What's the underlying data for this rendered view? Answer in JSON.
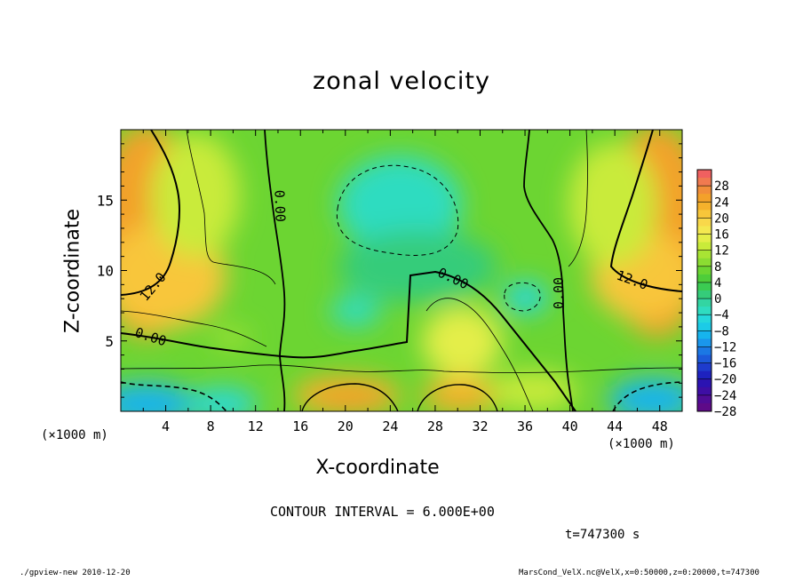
{
  "chart_data": {
    "type": "heatmap",
    "title": "zonal velocity",
    "xlabel": "X-coordinate",
    "ylabel": "Z-coordinate",
    "x_unit_left": "(×1000 m)",
    "x_unit_right": "(×1000 m)",
    "xlim": [
      0,
      50
    ],
    "ylim": [
      0,
      20
    ],
    "x_ticks": [
      4,
      8,
      12,
      16,
      20,
      24,
      28,
      32,
      36,
      40,
      44,
      48
    ],
    "y_ticks": [
      5,
      10,
      15
    ],
    "colorbar": {
      "labels": [
        "28",
        "24",
        "20",
        "16",
        "12",
        "8",
        "4",
        "0",
        "−4",
        "−8",
        "−12",
        "−16",
        "−20",
        "−24",
        "−28"
      ],
      "levels": [
        30,
        28,
        26,
        24,
        22,
        20,
        18,
        16,
        14,
        12,
        10,
        8,
        6,
        4,
        2,
        0,
        -2,
        -4,
        -6,
        -8,
        -10,
        -12,
        -14,
        -16,
        -18,
        -20,
        -22,
        -24,
        -26,
        -28,
        -30
      ],
      "colors": [
        "#f06060",
        "#f07a50",
        "#f18e3a",
        "#f3a12a",
        "#f5b12c",
        "#f8c63a",
        "#f9d84a",
        "#f4e850",
        "#e4ee48",
        "#c9eb3a",
        "#a8e434",
        "#8bdc32",
        "#6cd532",
        "#4ecd3a",
        "#3bcb52",
        "#35cc7a",
        "#33d5a2",
        "#2fdcc0",
        "#25d8dc",
        "#1ccbe7",
        "#16b4ee",
        "#1a96ec",
        "#1b78e4",
        "#1c5ada",
        "#1e3ccd",
        "#1e22bf",
        "#2b13b2",
        "#3e0ea4",
        "#500c96",
        "#5e0a88"
      ]
    },
    "contour_labels": [
      "12.0",
      "0.00",
      "0.00",
      "0.00",
      "0.00",
      "12.0"
    ],
    "contour_interval_text": "CONTOUR INTERVAL = 6.000E+00",
    "time_text": "t=747300 s"
  },
  "footer": {
    "left": "./gpview-new  2010-12-20",
    "right": "MarsCond_VelX.nc@VelX,x=0:50000,z=0:20000,t=747300"
  }
}
